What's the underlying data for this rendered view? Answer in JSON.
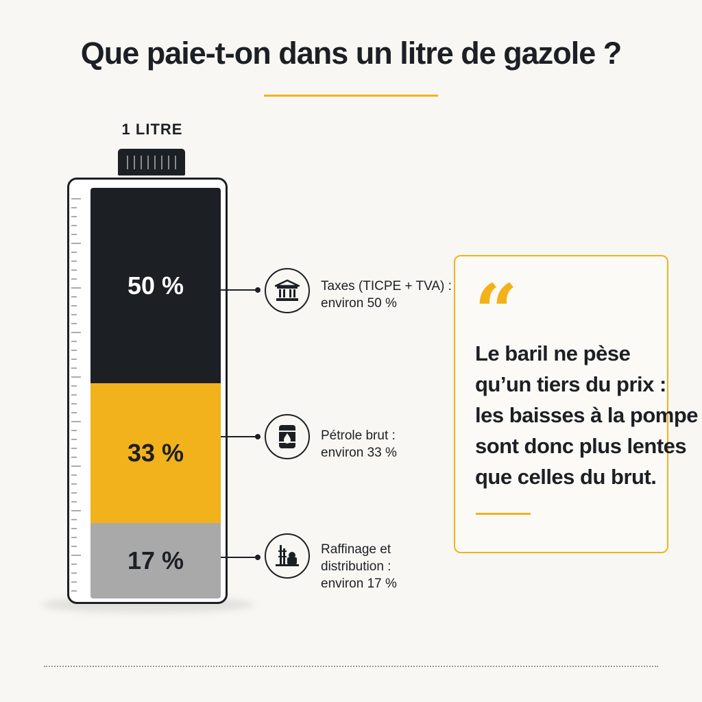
{
  "title": "Que paie-t-on dans un litre de gazole ?",
  "bottle": {
    "label": "1 LITRE",
    "segments": [
      {
        "id": "taxes",
        "value_label": "50 %",
        "share": 50,
        "color": "#1c1f24"
      },
      {
        "id": "crude",
        "value_label": "33 %",
        "share": 33,
        "color": "#f2b21b"
      },
      {
        "id": "refining",
        "value_label": "17 %",
        "share": 17,
        "color": "#a9a9a9"
      }
    ]
  },
  "legend": [
    {
      "icon": "bank-building-icon",
      "lines": [
        "Taxes (TICPE + TVA) :",
        "environ 50 %"
      ]
    },
    {
      "icon": "oil-barrel-icon",
      "lines": [
        "Pétrole brut :",
        "environ 33 %"
      ]
    },
    {
      "icon": "refinery-icon",
      "lines": [
        "Raffinage et",
        "distribution :",
        "environ 17 %"
      ]
    }
  ],
  "quote": {
    "mark": "“",
    "lines": [
      "Le baril ne pèse",
      "qu’un tiers du prix :",
      "les baisses à la pompe",
      "sont donc plus lentes",
      "que celles du brut."
    ]
  },
  "colors": {
    "accent": "#f2b21b",
    "dark": "#1c1f24",
    "grey": "#a9a9a9",
    "background": "#f8f7f3"
  }
}
